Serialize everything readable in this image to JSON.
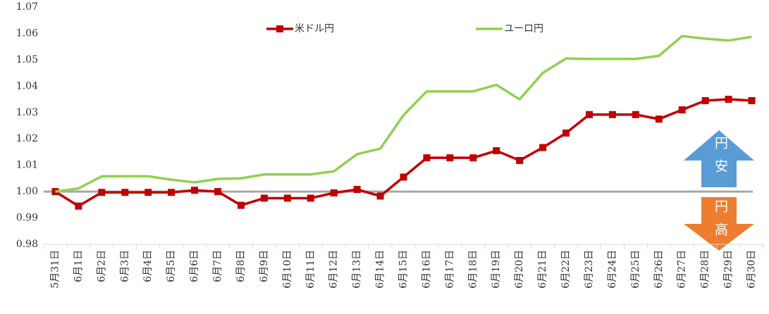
{
  "chart_data": {
    "type": "line",
    "categories": [
      "5月31日",
      "6月1日",
      "6月2日",
      "6月3日",
      "6月4日",
      "6月5日",
      "6月6日",
      "6月7日",
      "6月8日",
      "6月9日",
      "6月10日",
      "6月11日",
      "6月12日",
      "6月13日",
      "6月14日",
      "6月15日",
      "6月16日",
      "6月17日",
      "6月18日",
      "6月19日",
      "6月20日",
      "6月21日",
      "6月22日",
      "6月23日",
      "6月24日",
      "6月25日",
      "6月26日",
      "6月27日",
      "6月28日",
      "6月29日",
      "6月30日"
    ],
    "series": [
      {
        "name": "米ドル円",
        "color": "#c00000",
        "marker": "square",
        "values": [
          1.0,
          0.9945,
          0.9997,
          0.9997,
          0.9997,
          0.9997,
          1.0005,
          1.0,
          0.9948,
          0.9975,
          0.9975,
          0.9975,
          0.9995,
          1.0008,
          0.9983,
          1.0055,
          1.0128,
          1.0128,
          1.0128,
          1.0155,
          1.0118,
          1.0167,
          1.0222,
          1.0292,
          1.0292,
          1.0292,
          1.0275,
          1.031,
          1.0345,
          1.035,
          1.0345
        ]
      },
      {
        "name": "ユーロ円",
        "color": "#92d050",
        "values": [
          1.0,
          1.0012,
          1.0058,
          1.0058,
          1.0058,
          1.0045,
          1.0035,
          1.0048,
          1.005,
          1.0065,
          1.0065,
          1.0065,
          1.0077,
          1.0142,
          1.0163,
          1.029,
          1.038,
          1.038,
          1.038,
          1.0405,
          1.035,
          1.045,
          1.0505,
          1.0503,
          1.0503,
          1.0503,
          1.0515,
          1.059,
          1.058,
          1.0573,
          1.0587
        ]
      }
    ],
    "ylim": [
      0.98,
      1.07
    ],
    "yticks": [
      0.98,
      0.99,
      {
        "value": 1.0,
        "label": "1.00"
      },
      1.01,
      1.02,
      1.03,
      1.04,
      1.05,
      1.06,
      1.07
    ],
    "reference_line": 1.0,
    "annotations": [
      {
        "text": "円安",
        "color": "#5b9bd5"
      },
      {
        "text": "円高",
        "color": "#ed7d31"
      }
    ]
  }
}
